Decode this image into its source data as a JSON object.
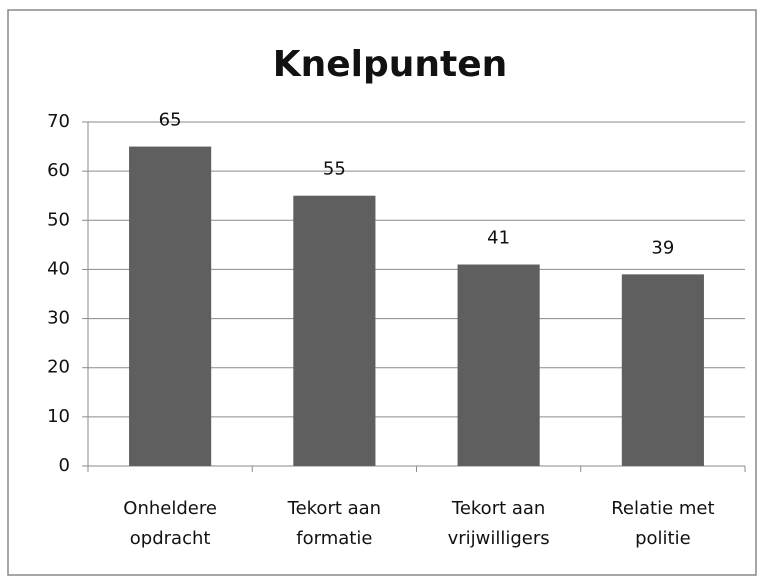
{
  "chart_data": {
    "type": "bar",
    "title": "Knelpunten",
    "categories": [
      "Onheldere opdracht",
      "Tekort aan formatie",
      "Tekort aan vrijwilligers",
      "Relatie met politie"
    ],
    "values": [
      65,
      55,
      41,
      39
    ],
    "color": "#5f5f5f",
    "ylim": [
      0,
      70
    ],
    "yticks": [
      0,
      10,
      20,
      30,
      40,
      50,
      60,
      70
    ],
    "grid": true
  }
}
